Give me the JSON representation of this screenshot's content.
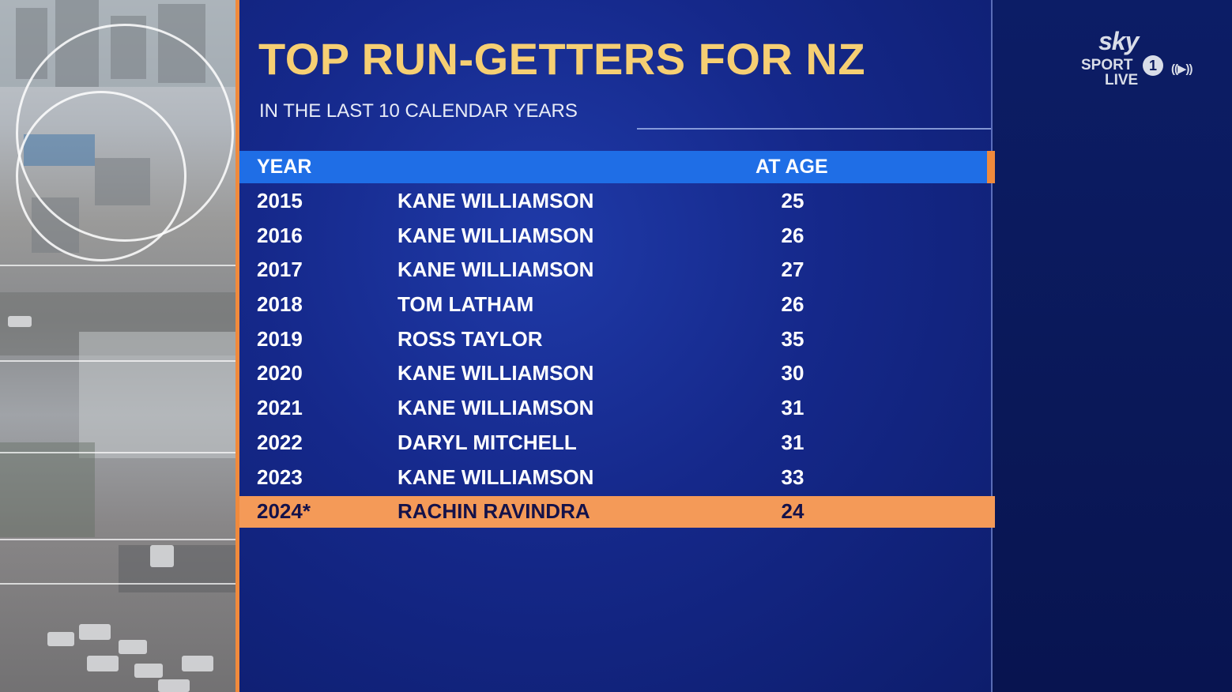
{
  "graphic": {
    "title": "TOP RUN-GETTERS FOR NZ",
    "subtitle": "IN THE LAST 10 CALENDAR YEARS",
    "headers": {
      "year": "YEAR",
      "age": "AT AGE"
    },
    "rows": [
      {
        "year": "2015",
        "name": "KANE WILLIAMSON",
        "age": "25"
      },
      {
        "year": "2016",
        "name": "KANE WILLIAMSON",
        "age": "26"
      },
      {
        "year": "2017",
        "name": "KANE WILLIAMSON",
        "age": "27"
      },
      {
        "year": "2018",
        "name": "TOM LATHAM",
        "age": "26"
      },
      {
        "year": "2019",
        "name": "ROSS TAYLOR",
        "age": "35"
      },
      {
        "year": "2020",
        "name": "KANE WILLIAMSON",
        "age": "30"
      },
      {
        "year": "2021",
        "name": "KANE WILLIAMSON",
        "age": "31"
      },
      {
        "year": "2022",
        "name": "DARYL MITCHELL",
        "age": "31"
      },
      {
        "year": "2023",
        "name": "KANE WILLIAMSON",
        "age": "33"
      },
      {
        "year": "2024*",
        "name": "RACHIN RAVINDRA",
        "age": "24"
      }
    ]
  },
  "logo": {
    "brand": "sky",
    "channel": "SPORT",
    "number": "1",
    "suffix": "LIVE",
    "live_icon": "((▶))"
  },
  "colors": {
    "title": "#f6cf73",
    "header_bar": "#1f6ee6",
    "accent_orange": "#f08a3c",
    "highlight_row": "#f49a58",
    "panel": "#15288a"
  }
}
